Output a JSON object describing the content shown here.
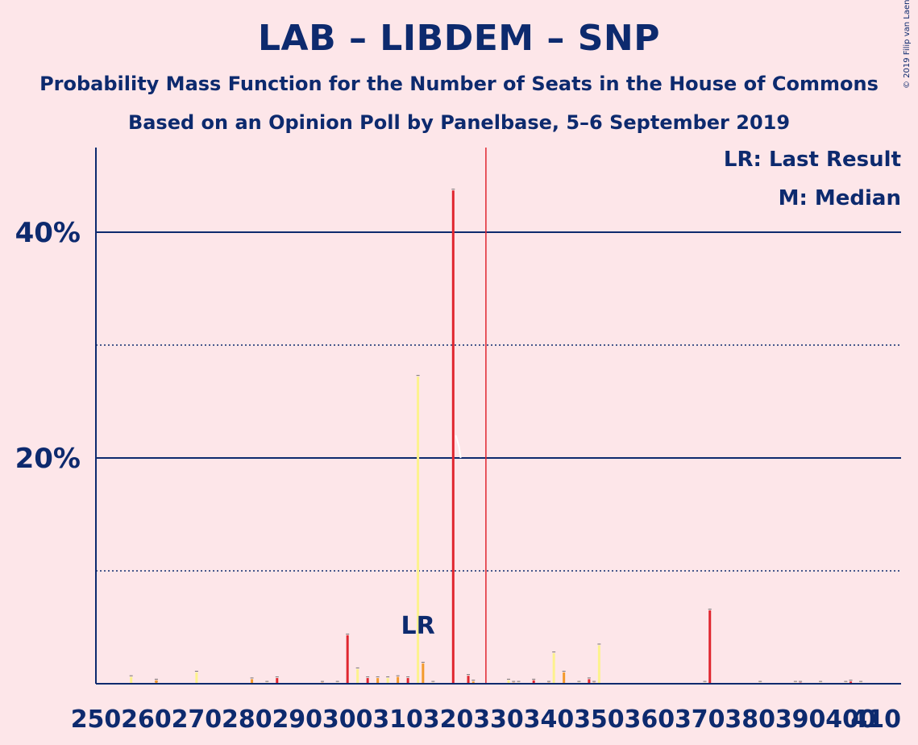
{
  "chart_data": {
    "type": "bar",
    "title": "LAB – LIBDEM – SNP",
    "subtitle_1": "Probability Mass Function for the Number of Seats in the House of Commons",
    "subtitle_2": "Based on an Opinion Poll by Panelbase, 5–6 September 2019",
    "copyright": "© 2019 Filip van Laenen",
    "legend": {
      "lr": "LR: Last Result",
      "m": "M: Median",
      "placement": "top-right"
    },
    "last_result_label": "LR",
    "last_result_x": 314,
    "median_label": "M",
    "median_x": 322,
    "y_ticks": [
      {
        "value": 20,
        "label": "20%"
      },
      {
        "value": 40,
        "label": "40%"
      }
    ],
    "y_dotted_gridlines": [
      10,
      30
    ],
    "ylim": [
      0,
      47.5
    ],
    "x_ticks": [
      "250",
      "260",
      "270",
      "280",
      "290",
      "300",
      "310",
      "320",
      "330",
      "340",
      "350",
      "360",
      "370",
      "380",
      "390",
      "400",
      "410"
    ],
    "xlim": [
      250,
      410
    ],
    "vertical_line_x": 327.5,
    "colors": {
      "background": "#fde6e9",
      "text": "#0d2a6e",
      "red": "#e0262f",
      "orange": "#f39a2c",
      "yellow": "#fdf28d",
      "vline": "#e0262f"
    },
    "series": [
      {
        "color_key": "yellow",
        "x": [
          257,
          262,
          270,
          284,
          298,
          302,
          308,
          314,
          317,
          332,
          334,
          341,
          346,
          350,
          371,
          382,
          389,
          394,
          399,
          402
        ],
        "values": [
          0.6,
          0.1,
          1.0,
          0.1,
          0.1,
          1.3,
          0.5,
          27.2,
          0.1,
          0.3,
          0.1,
          2.7,
          0.1,
          3.4,
          0.1,
          0.1,
          0.1,
          0.1,
          0.1,
          0.1
        ]
      },
      {
        "color_key": "orange",
        "x": [
          262,
          281,
          295,
          306,
          310,
          315,
          325,
          333,
          340,
          343,
          349
        ],
        "values": [
          0.3,
          0.4,
          0.1,
          0.5,
          0.6,
          1.8,
          0.2,
          0.1,
          0.1,
          1.0,
          0.1
        ]
      },
      {
        "color_key": "red",
        "x": [
          286,
          300,
          304,
          312,
          321,
          324,
          337,
          348,
          372,
          390,
          400
        ],
        "values": [
          0.5,
          4.3,
          0.5,
          0.5,
          43.7,
          0.7,
          0.3,
          0.4,
          6.5,
          0.1,
          0.2
        ]
      }
    ]
  }
}
